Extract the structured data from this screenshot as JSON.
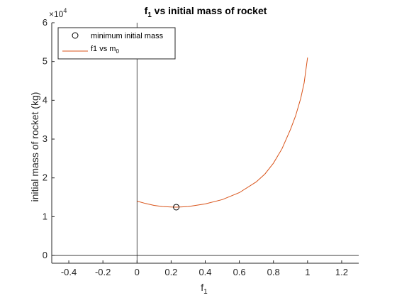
{
  "chart_data": {
    "type": "line",
    "title": "f",
    "title_sub": "1",
    "title_rest": " vs initial mass of rocket",
    "xlabel": "f",
    "xlabel_sub": "1",
    "ylabel": "initial mass of rocket (kg)",
    "y_exponent_base": "×10",
    "y_exponent_power": "4",
    "xlim": [
      -0.5,
      1.3
    ],
    "ylim": [
      -2000,
      60000
    ],
    "xticks": [
      -0.4,
      -0.2,
      0,
      0.2,
      0.4,
      0.6,
      0.8,
      1,
      1.2
    ],
    "xtick_labels": [
      "-0.4",
      "-0.2",
      "0",
      "0.2",
      "0.4",
      "0.6",
      "0.8",
      "1",
      "1.2"
    ],
    "yticks": [
      0,
      10000,
      20000,
      30000,
      40000,
      50000,
      60000
    ],
    "ytick_labels": [
      "0",
      "1",
      "2",
      "3",
      "4",
      "5",
      "6"
    ],
    "grid": false,
    "legend_position": "top-left",
    "series": [
      {
        "name": "f1 vs m",
        "name_sub": "0",
        "color": "#D95319",
        "x": [
          0,
          0.05,
          0.1,
          0.15,
          0.2,
          0.23,
          0.3,
          0.4,
          0.5,
          0.6,
          0.7,
          0.75,
          0.8,
          0.85,
          0.9,
          0.93,
          0.96,
          0.98,
          1.0
        ],
        "y": [
          14000,
          13400,
          12900,
          12600,
          12500,
          12450,
          12600,
          13300,
          14400,
          16200,
          19000,
          21000,
          23800,
          27500,
          32500,
          36000,
          40500,
          44500,
          51000
        ]
      }
    ],
    "markers": [
      {
        "name": "minimum initial mass",
        "x": 0.23,
        "y": 12450,
        "shape": "circle",
        "color": "#000000"
      }
    ],
    "reference_lines": {
      "x0": true,
      "y0": true
    }
  }
}
